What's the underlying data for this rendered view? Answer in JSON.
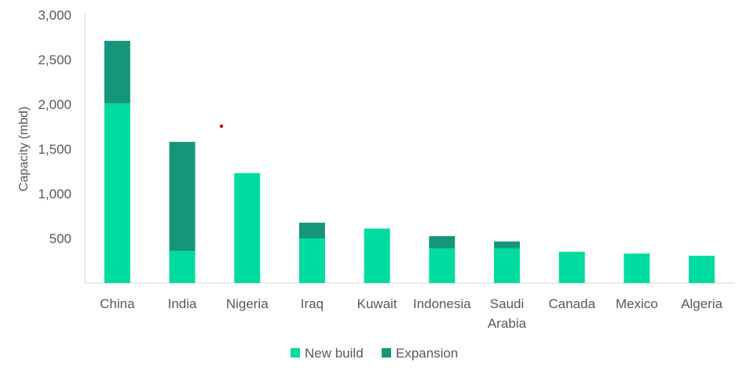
{
  "chart_data": {
    "type": "bar",
    "stacked": true,
    "categories": [
      [
        "China"
      ],
      [
        "India"
      ],
      [
        "Nigeria"
      ],
      [
        "Iraq"
      ],
      [
        "Kuwait"
      ],
      [
        "Indonesia"
      ],
      [
        "Saudi",
        "Arabia"
      ],
      [
        "Canada"
      ],
      [
        "Mexico"
      ],
      [
        "Algeria"
      ]
    ],
    "series": [
      {
        "name": "New build",
        "color": "#00DCA0",
        "values": [
          2010,
          360,
          1230,
          500,
          610,
          390,
          390,
          350,
          330,
          305
        ]
      },
      {
        "name": "Expansion",
        "color": "#15967A",
        "values": [
          700,
          1220,
          0,
          175,
          0,
          135,
          75,
          0,
          0,
          0
        ]
      }
    ],
    "ylabel": "Capacity (mbd)",
    "ylim": [
      0,
      3000
    ],
    "yticks": [
      500,
      1000,
      1500,
      2000,
      2500,
      3000
    ],
    "ytick_labels": [
      "500",
      "1,000",
      "1,500",
      "2,000",
      "2,500",
      "3,000"
    ],
    "grid": false,
    "legend_position": "bottom-center",
    "annotation_marker_color": "#C00000"
  }
}
